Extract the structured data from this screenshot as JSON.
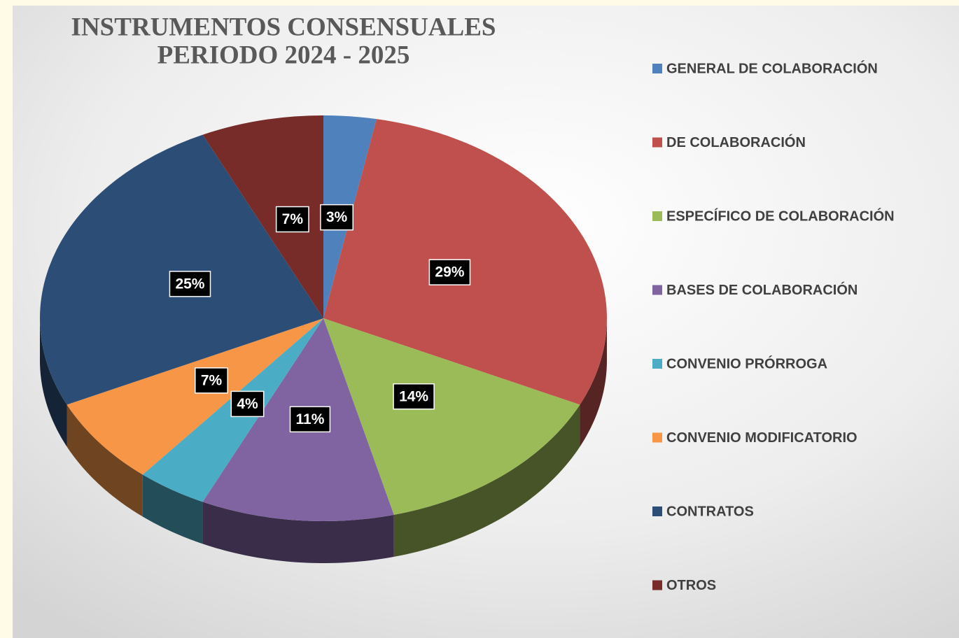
{
  "chart_data": {
    "type": "pie",
    "title": [
      "INSTRUMENTOS CONSENSUALES",
      "PERIODO 2024 - 2025"
    ],
    "categories": [
      "GENERAL DE COLABORACIÓN",
      "DE COLABORACIÓN",
      "ESPECÍFICO DE COLABORACIÓN",
      "BASES DE COLABORACIÓN",
      "CONVENIO PRÓRROGA",
      "CONVENIO MODIFICATORIO",
      "CONTRATOS",
      "OTROS"
    ],
    "values": [
      3,
      29,
      14,
      11,
      4,
      7,
      25,
      7
    ],
    "value_labels": [
      "3%",
      "29%",
      "14%",
      "11%",
      "4%",
      "7%",
      "25%",
      "7%"
    ],
    "colors": [
      "#4f81bd",
      "#c0504d",
      "#9bbb59",
      "#8064a2",
      "#4bacc6",
      "#f79646",
      "#2c4d75",
      "#772c2a"
    ],
    "legend": "right"
  }
}
